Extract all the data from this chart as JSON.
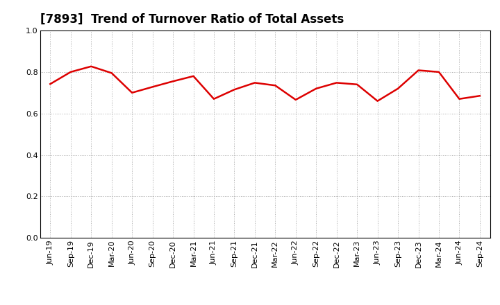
{
  "title": "[7893]  Trend of Turnover Ratio of Total Assets",
  "x_labels": [
    "Jun-19",
    "Sep-19",
    "Dec-19",
    "Mar-20",
    "Jun-20",
    "Sep-20",
    "Dec-20",
    "Mar-21",
    "Jun-21",
    "Sep-21",
    "Dec-21",
    "Mar-22",
    "Jun-22",
    "Sep-22",
    "Dec-22",
    "Mar-23",
    "Jun-23",
    "Sep-23",
    "Dec-23",
    "Mar-24",
    "Jun-24",
    "Sep-24"
  ],
  "values": [
    0.742,
    0.8,
    0.827,
    0.795,
    0.7,
    0.728,
    0.755,
    0.78,
    0.67,
    0.715,
    0.748,
    0.735,
    0.666,
    0.72,
    0.748,
    0.74,
    0.66,
    0.72,
    0.808,
    0.8,
    0.67,
    0.685
  ],
  "line_color": "#dd0000",
  "line_width": 1.8,
  "ylim": [
    0.0,
    1.0
  ],
  "yticks": [
    0.0,
    0.2,
    0.4,
    0.6,
    0.8,
    1.0
  ],
  "grid_color": "#aaaaaa",
  "grid_style": "dotted",
  "background_color": "#ffffff",
  "title_fontsize": 12,
  "tick_fontsize": 8
}
